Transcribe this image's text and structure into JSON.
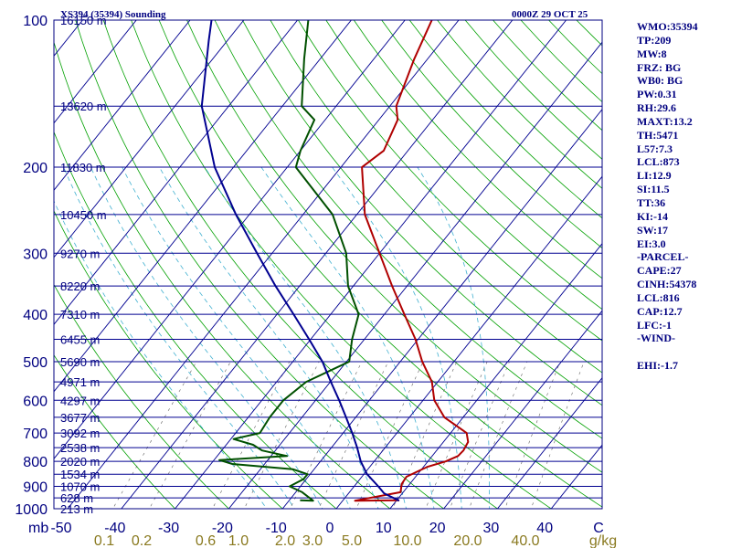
{
  "chart_data": {
    "type": "line",
    "title": "XS394 (35394) Sounding",
    "time": "0000Z 29 OCT 25",
    "y_label": "mb",
    "y_scale": "log-pressure",
    "ylim": [
      1000,
      100
    ],
    "pressure_ticks": [
      "100",
      "200",
      "300",
      "400",
      "500",
      "600",
      "700",
      "800",
      "900",
      "1000"
    ],
    "temperature_ticks": [
      "-50",
      "-40",
      "-30",
      "-20",
      "-10",
      "0",
      "10",
      "20",
      "30",
      "40",
      "C"
    ],
    "mixing_ratio_ticks": [
      "0.1",
      "0.2",
      "0.6",
      "1.0",
      "2.0",
      "3.0",
      "5.0",
      "10.0",
      "20.0",
      "40.0",
      "g/kg"
    ],
    "heights": [
      {
        "label": "16150 m",
        "p": 100
      },
      {
        "label": "13620 m",
        "p": 150
      },
      {
        "label": "11830 m",
        "p": 200
      },
      {
        "label": "10450 m",
        "p": 250
      },
      {
        "label": "9270 m",
        "p": 300
      },
      {
        "label": "8220 m",
        "p": 350
      },
      {
        "label": "7310 m",
        "p": 400
      },
      {
        "label": "6455 m",
        "p": 450
      },
      {
        "label": "5690 m",
        "p": 500
      },
      {
        "label": "4971 m",
        "p": 550
      },
      {
        "label": "4297 m",
        "p": 600
      },
      {
        "label": "3677 m",
        "p": 650
      },
      {
        "label": "3092 m",
        "p": 700
      },
      {
        "label": "2538 m",
        "p": 750
      },
      {
        "label": "2020 m",
        "p": 800
      },
      {
        "label": "1534 m",
        "p": 850
      },
      {
        "label": "1070 m",
        "p": 900
      },
      {
        "label": "628 m",
        "p": 950
      },
      {
        "label": "213 m",
        "p": 1000
      }
    ],
    "series": [
      {
        "name": "temperature",
        "color": "#b00000",
        "points": [
          [
            961,
            10.5
          ],
          [
            963,
            2.3
          ],
          [
            925,
            9.5
          ],
          [
            890,
            8.5
          ],
          [
            860,
            8.3
          ],
          [
            840,
            9.5
          ],
          [
            820,
            10.8
          ],
          [
            800,
            13.3
          ],
          [
            780,
            14.8
          ],
          [
            760,
            15.0
          ],
          [
            730,
            14.6
          ],
          [
            700,
            13.0
          ],
          [
            650,
            6.5
          ],
          [
            600,
            2.1
          ],
          [
            550,
            -1.1
          ],
          [
            500,
            -5.9
          ],
          [
            450,
            -10.5
          ],
          [
            400,
            -16.3
          ],
          [
            350,
            -22.8
          ],
          [
            300,
            -30.0
          ],
          [
            250,
            -38.5
          ],
          [
            200,
            -46.1
          ],
          [
            185,
            -44.5
          ],
          [
            160,
            -46.5
          ],
          [
            150,
            -48.8
          ],
          [
            120,
            -52.5
          ],
          [
            100,
            -55.0
          ]
        ]
      },
      {
        "name": "dewpoint",
        "color": "#005000",
        "points": [
          [
            961,
            -8.0
          ],
          [
            963,
            -5.5
          ],
          [
            925,
            -8.8
          ],
          [
            900,
            -12.0
          ],
          [
            870,
            -10.5
          ],
          [
            850,
            -10.5
          ],
          [
            830,
            -14.0
          ],
          [
            810,
            -26.0
          ],
          [
            795,
            -29.0
          ],
          [
            780,
            -17.0
          ],
          [
            760,
            -22.5
          ],
          [
            740,
            -25.0
          ],
          [
            720,
            -29.5
          ],
          [
            700,
            -25.5
          ],
          [
            650,
            -26.0
          ],
          [
            600,
            -26.0
          ],
          [
            550,
            -24.5
          ],
          [
            500,
            -19.5
          ],
          [
            450,
            -22.3
          ],
          [
            400,
            -24.8
          ],
          [
            350,
            -31.0
          ],
          [
            300,
            -36.2
          ],
          [
            250,
            -44.5
          ],
          [
            200,
            -58.4
          ],
          [
            185,
            -60.0
          ],
          [
            160,
            -62.0
          ],
          [
            150,
            -66.4
          ],
          [
            120,
            -73.0
          ],
          [
            100,
            -78.0
          ]
        ]
      },
      {
        "name": "parcel",
        "color": "#000090",
        "points": [
          [
            963,
            10.5
          ],
          [
            930,
            6.6
          ],
          [
            900,
            4.5
          ],
          [
            850,
            0.6
          ],
          [
            800,
            -2.5
          ],
          [
            750,
            -5.2
          ],
          [
            700,
            -8.3
          ],
          [
            650,
            -11.8
          ],
          [
            600,
            -15.6
          ],
          [
            550,
            -19.9
          ],
          [
            500,
            -24.5
          ],
          [
            450,
            -30.3
          ],
          [
            400,
            -36.9
          ],
          [
            350,
            -44.5
          ],
          [
            300,
            -52.8
          ],
          [
            250,
            -62.5
          ],
          [
            200,
            -73.5
          ],
          [
            150,
            -85.0
          ],
          [
            110,
            -93.5
          ],
          [
            100,
            -96.0
          ]
        ]
      }
    ],
    "indices": [
      "WMO:35394",
      "TP:209",
      "MW:8",
      "FRZ: BG",
      "WB0: BG",
      "PW:0.31",
      "RH:29.6",
      "MAXT:13.2",
      "TH:5471",
      "L57:7.3",
      "LCL:873",
      "LI:12.9",
      "SI:11.5",
      "TT:36",
      "KI:-14",
      "SW:17",
      "EI:3.0",
      "-PARCEL-",
      "CAPE:27",
      "CINH:54378",
      "LCL:816",
      "CAP:12.7",
      "LFC:-1",
      "-WIND-",
      "",
      "EHI:-1.7"
    ]
  },
  "colors": {
    "frame": "#000080",
    "pressure_line": "#000090",
    "isotherm": "#000090",
    "dry_adiabat": "#00a000",
    "moist_adiabat": "#40b0d0",
    "mixing_ratio": "#606060",
    "temp_tick": "#000080",
    "mixing_tick": "#8a7a20"
  }
}
